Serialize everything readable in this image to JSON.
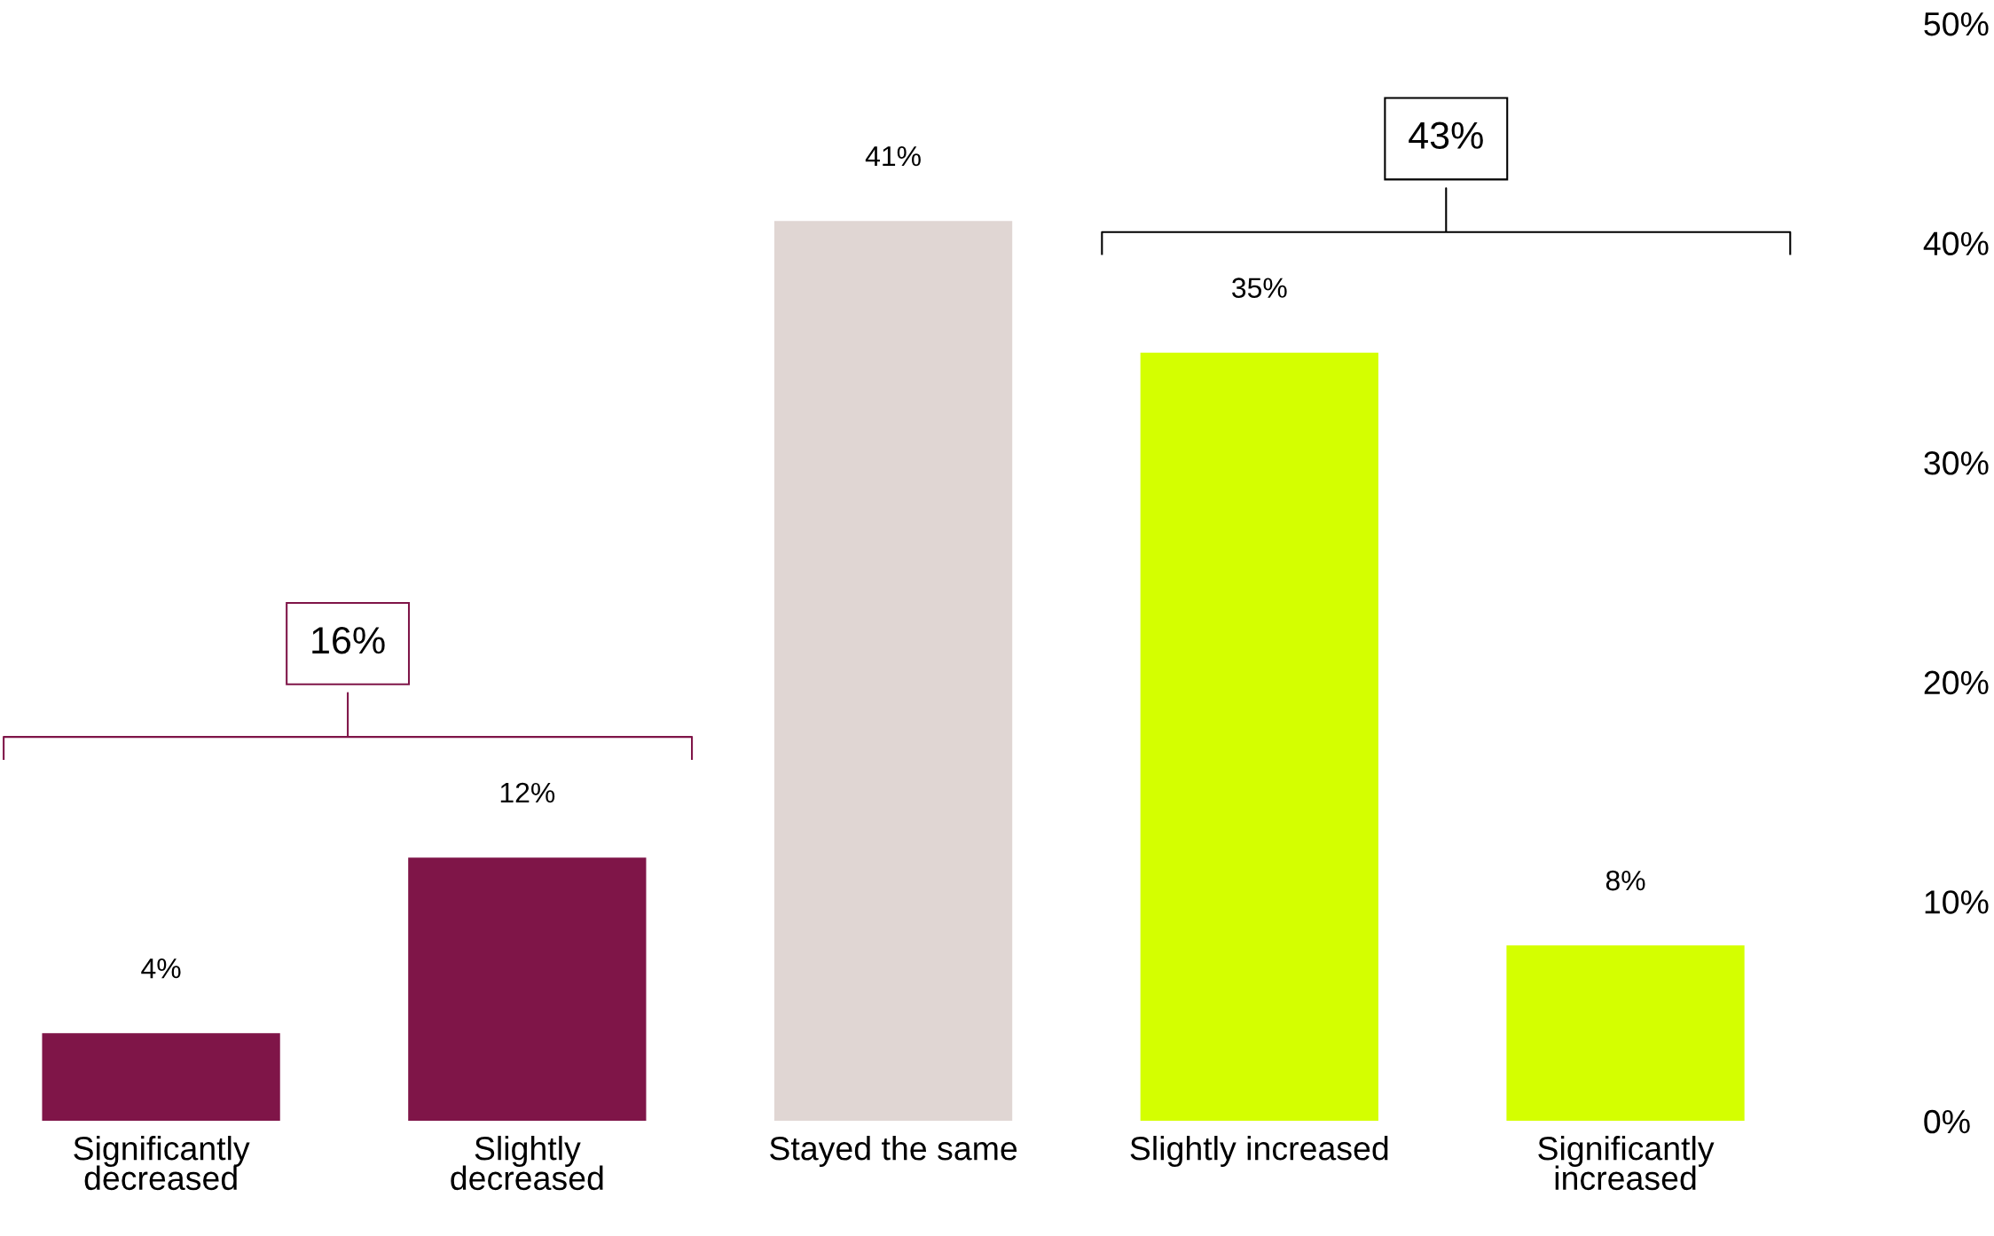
{
  "chart_data": {
    "type": "bar",
    "categories": [
      "Significantly\ndecreased",
      "Slightly\ndecreased",
      "Stayed the same",
      "Slightly increased",
      "Significantly\nincreased"
    ],
    "values": [
      4,
      12,
      41,
      35,
      8
    ],
    "colors": [
      "#7f1548",
      "#7f1548",
      "#e0d6d3",
      "#d4ff00",
      "#d4ff00"
    ],
    "value_labels": [
      "4%",
      "12%",
      "41%",
      "35%",
      "8%"
    ],
    "annotations": [
      "16%",
      "43%"
    ],
    "ylim": [
      0,
      50
    ],
    "yticks": [
      {
        "value": 0,
        "label": "0%"
      },
      {
        "value": 10,
        "label": "10%"
      },
      {
        "value": 20,
        "label": "20%"
      },
      {
        "value": 30,
        "label": "30%"
      },
      {
        "value": 40,
        "label": "40%"
      },
      {
        "value": 50,
        "label": "50%"
      }
    ],
    "grid": false,
    "legend": false
  }
}
